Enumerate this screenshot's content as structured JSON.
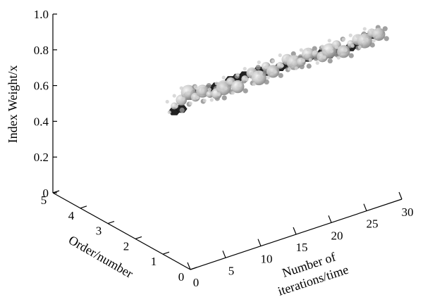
{
  "chart_data": {
    "type": "scatter",
    "projection": "3d",
    "title": "",
    "zlabel": "Index Weight/x",
    "ylabel": "Order/number",
    "xlabel_lines": [
      "Number of",
      "iterations/time"
    ],
    "z_ticks": [
      "0",
      "0.2",
      "0.4",
      "0.6",
      "0.8",
      "1.0"
    ],
    "y_ticks": [
      "0",
      "1",
      "2",
      "3",
      "4",
      "5"
    ],
    "x_ticks": [
      "0",
      "5",
      "10",
      "15",
      "20",
      "25",
      "30"
    ],
    "zlim": [
      0,
      1.0
    ],
    "ylim": [
      0,
      5
    ],
    "xlim": [
      0,
      30
    ],
    "grid": false,
    "colors": {
      "dark_markers": "#222222",
      "light_markers": "#bdbdbd",
      "axes": "#000000"
    },
    "series": [
      {
        "marker": "dark-hexagon",
        "y_value": 0.84,
        "x": [
          1,
          2,
          3,
          4,
          5,
          6,
          7,
          8,
          9,
          10,
          11,
          12,
          13,
          14,
          15,
          16,
          17,
          18,
          19,
          20,
          21,
          22,
          23,
          24,
          25,
          26,
          27,
          28,
          29,
          30
        ],
        "z": [
          0.8,
          0.8,
          0.86,
          0.86,
          0.86,
          0.86,
          0.86,
          0.85,
          0.87,
          0.87,
          0.87,
          0.87,
          0.87,
          0.85,
          0.85,
          0.85,
          0.85,
          0.85,
          0.85,
          0.85,
          0.85,
          0.85,
          0.83,
          0.83,
          0.83,
          0.83,
          0.83,
          0.86,
          0.86,
          0.86
        ]
      },
      {
        "marker": "light-sphere",
        "y_value": 0.84,
        "x": [
          1,
          2,
          3,
          4,
          5,
          6,
          7,
          8,
          9,
          10,
          11,
          12,
          13,
          14,
          15,
          16,
          17,
          18,
          19,
          20,
          21,
          22,
          23,
          24,
          25,
          26,
          27,
          28,
          29,
          30
        ],
        "z": [
          0.83,
          0.85,
          0.88,
          0.84,
          0.86,
          0.83,
          0.82,
          0.84,
          0.86,
          0.82,
          0.85,
          0.87,
          0.83,
          0.88,
          0.84,
          0.86,
          0.88,
          0.85,
          0.84,
          0.87,
          0.86,
          0.83,
          0.85,
          0.87,
          0.82,
          0.85,
          0.86,
          0.84,
          0.87,
          0.85
        ]
      }
    ]
  }
}
